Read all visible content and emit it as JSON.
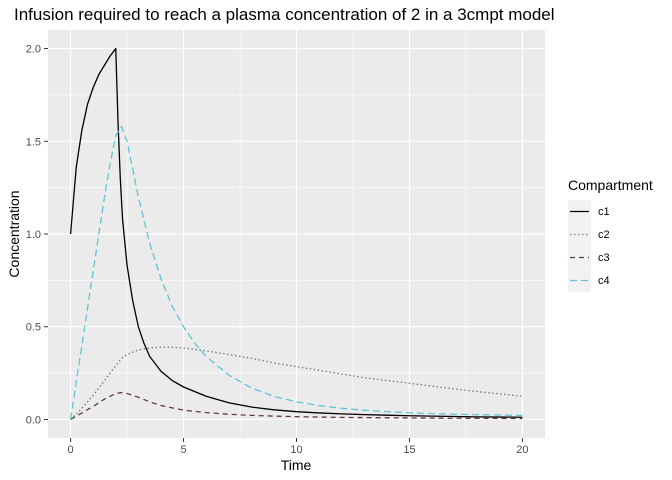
{
  "chart_data": {
    "type": "line",
    "title": "Infusion required to reach a plasma concentration of 2 in a 3cmpt model",
    "xlabel": "Time",
    "ylabel": "Concentration",
    "xlim": [
      -1,
      21
    ],
    "ylim": [
      -0.1,
      2.1
    ],
    "xticks": [
      0,
      5,
      10,
      15,
      20
    ],
    "xtick_labels": [
      "0",
      "5",
      "10",
      "15",
      "20"
    ],
    "yticks": [
      0.0,
      0.5,
      1.0,
      1.5,
      2.0
    ],
    "ytick_labels": [
      "0.0",
      "0.5",
      "1.0",
      "1.5",
      "2.0"
    ],
    "grid": true,
    "legend": {
      "title": "Compartment",
      "position": "right"
    },
    "series": [
      {
        "name": "c1",
        "color": "#000000",
        "dash": "solid",
        "x": [
          0,
          0.25,
          0.5,
          0.75,
          1,
          1.25,
          1.5,
          1.75,
          2,
          2.1,
          2.2,
          2.3,
          2.5,
          2.75,
          3,
          3.25,
          3.5,
          4,
          4.5,
          5,
          5.5,
          6,
          7,
          8,
          9,
          10,
          11,
          12,
          13,
          14,
          15,
          16,
          17,
          18,
          19,
          20
        ],
        "y": [
          1.0,
          1.36,
          1.56,
          1.7,
          1.79,
          1.86,
          1.91,
          1.96,
          2.0,
          1.6,
          1.3,
          1.08,
          0.83,
          0.64,
          0.5,
          0.41,
          0.34,
          0.26,
          0.21,
          0.175,
          0.15,
          0.125,
          0.09,
          0.067,
          0.052,
          0.042,
          0.035,
          0.03,
          0.026,
          0.023,
          0.02,
          0.018,
          0.016,
          0.014,
          0.013,
          0.012
        ]
      },
      {
        "name": "c2",
        "color": "#6b7a8f",
        "dash": "dotted",
        "x": [
          0,
          0.5,
          1,
          1.5,
          2,
          2.25,
          2.5,
          3,
          3.5,
          4,
          4.5,
          5,
          6,
          7,
          8,
          9,
          10,
          11,
          12,
          13,
          14,
          15,
          16,
          17,
          18,
          19,
          20
        ],
        "y": [
          0.0,
          0.06,
          0.13,
          0.21,
          0.29,
          0.33,
          0.35,
          0.375,
          0.385,
          0.39,
          0.39,
          0.385,
          0.37,
          0.35,
          0.33,
          0.305,
          0.285,
          0.265,
          0.245,
          0.225,
          0.21,
          0.195,
          0.18,
          0.165,
          0.15,
          0.138,
          0.125
        ]
      },
      {
        "name": "c3",
        "color": "#5e3c3c",
        "dash": "dashed",
        "x": [
          0,
          0.5,
          1,
          1.5,
          2,
          2.25,
          2.5,
          3,
          3.5,
          4,
          5,
          6,
          7,
          8,
          9,
          10,
          12,
          14,
          16,
          18,
          20
        ],
        "y": [
          0.0,
          0.035,
          0.07,
          0.11,
          0.14,
          0.145,
          0.14,
          0.12,
          0.095,
          0.075,
          0.05,
          0.037,
          0.028,
          0.022,
          0.018,
          0.015,
          0.011,
          0.009,
          0.007,
          0.006,
          0.005
        ]
      },
      {
        "name": "c4",
        "color": "#5fc4d3",
        "dash": "longdash",
        "x": [
          0,
          0.25,
          0.5,
          0.75,
          1,
          1.25,
          1.5,
          1.75,
          2,
          2.25,
          2.5,
          2.75,
          3,
          3.5,
          4,
          4.5,
          5,
          5.5,
          6,
          7,
          8,
          9,
          10,
          11,
          12,
          13,
          14,
          15,
          16,
          17,
          18,
          19,
          20
        ],
        "y": [
          0.0,
          0.2,
          0.4,
          0.6,
          0.8,
          1.0,
          1.2,
          1.38,
          1.53,
          1.58,
          1.5,
          1.35,
          1.2,
          0.95,
          0.76,
          0.61,
          0.5,
          0.41,
          0.34,
          0.24,
          0.17,
          0.125,
          0.095,
          0.075,
          0.06,
          0.05,
          0.042,
          0.036,
          0.032,
          0.028,
          0.026,
          0.024,
          0.022
        ]
      }
    ]
  }
}
